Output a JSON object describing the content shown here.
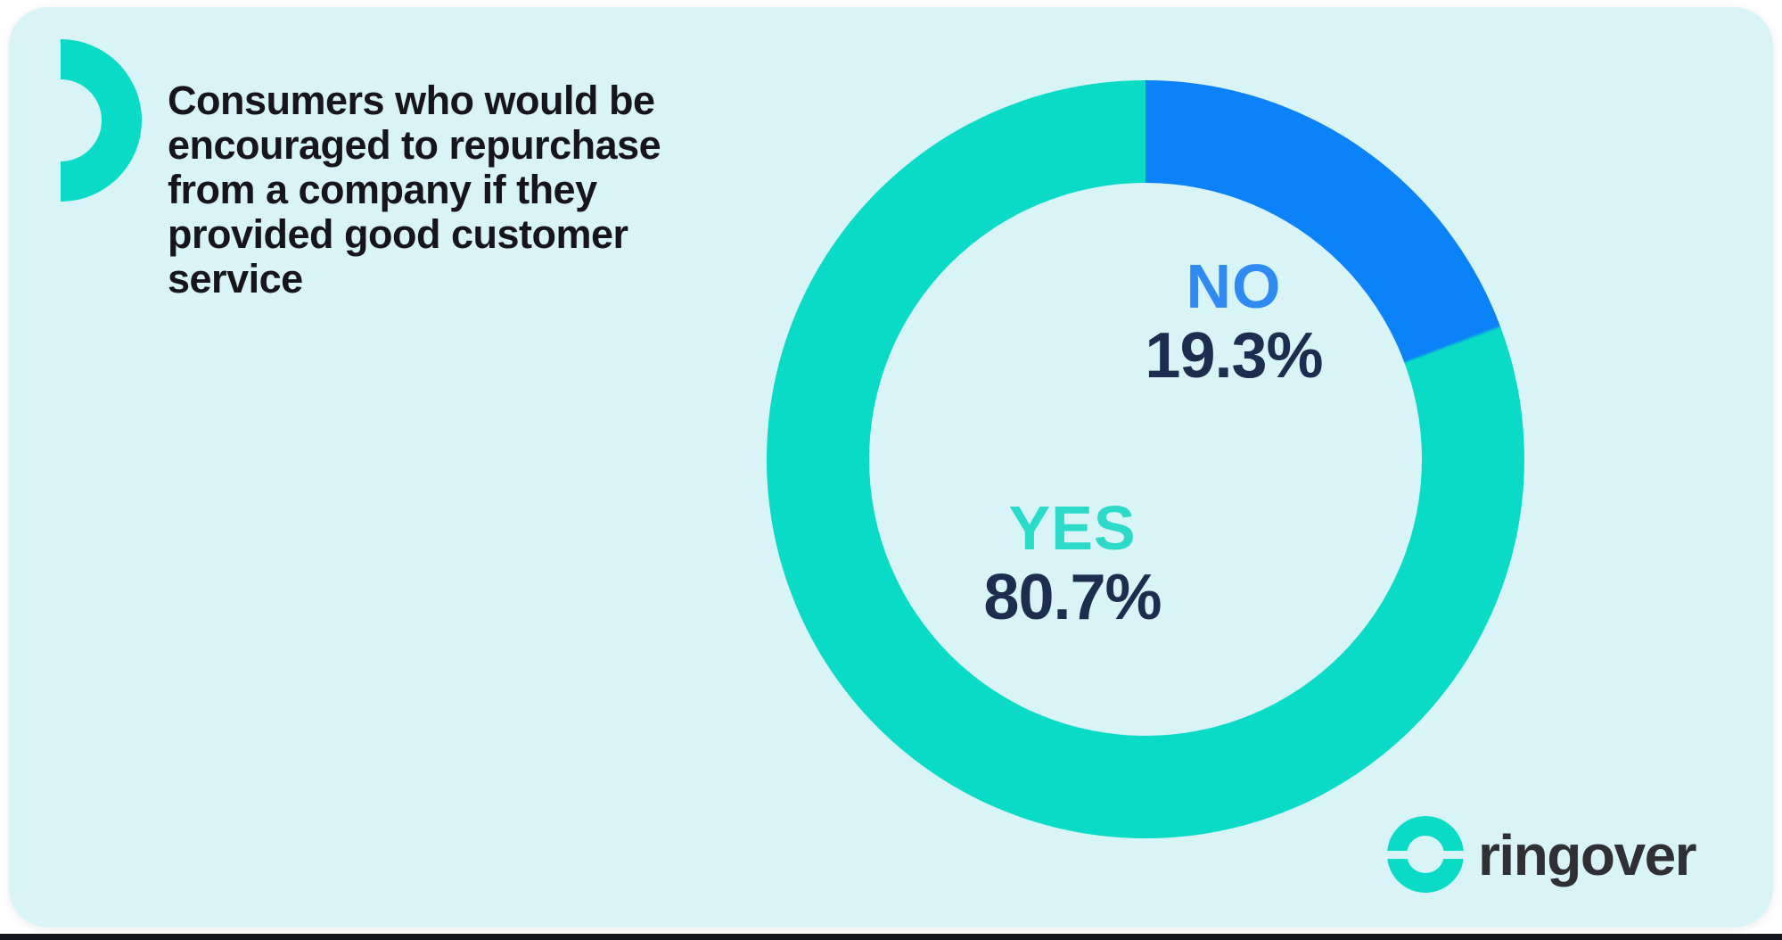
{
  "page": {
    "background": "#FFFFFF",
    "card_background": "#D8F4F7",
    "bottom_bar_color": "#14171C"
  },
  "colors": {
    "teal": "#09DBC6",
    "blue": "#0B82F7",
    "navy": "#1C2D4F",
    "title_text": "#15151B",
    "logo_text": "#2F2F36",
    "label_blue": "#2F8BF2",
    "label_teal": "#2BDAC8"
  },
  "title": {
    "lines": [
      "Consumers who would be",
      "encouraged to repurchase",
      "from a company if they",
      "provided good customer",
      "service"
    ]
  },
  "chart_data": {
    "type": "pie",
    "donut": true,
    "title": "Consumers who would be encouraged to repurchase from a company if they provided good customer service",
    "categories": [
      "NO",
      "YES"
    ],
    "values": [
      19.3,
      80.7
    ],
    "unit": "%",
    "start_angle_deg": 0,
    "direction": "clockwise",
    "legend_position": "inside-donut",
    "segments": [
      {
        "label": "NO",
        "value_text": "19.3%",
        "color": "#0B82F7",
        "label_color": "#2F8BF2"
      },
      {
        "label": "YES",
        "value_text": "80.7%",
        "color": "#09DBC6",
        "label_color": "#2BDAC8"
      }
    ]
  },
  "logo": {
    "brand": "ringover"
  }
}
